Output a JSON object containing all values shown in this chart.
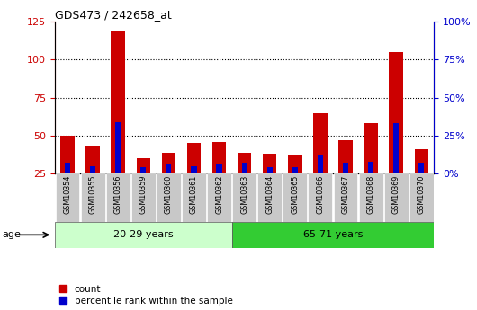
{
  "title": "GDS473 / 242658_at",
  "categories": [
    "GSM10354",
    "GSM10355",
    "GSM10356",
    "GSM10359",
    "GSM10360",
    "GSM10361",
    "GSM10362",
    "GSM10363",
    "GSM10364",
    "GSM10365",
    "GSM10366",
    "GSM10367",
    "GSM10368",
    "GSM10369",
    "GSM10370"
  ],
  "count_values": [
    50,
    43,
    119,
    35,
    39,
    45,
    46,
    39,
    38,
    37,
    65,
    47,
    58,
    105,
    41
  ],
  "percentile_values": [
    7,
    5,
    34,
    4,
    6,
    5,
    6,
    7,
    4,
    4,
    12,
    7,
    8,
    33,
    7
  ],
  "group1_label": "20-29 years",
  "group2_label": "65-71 years",
  "group1_count": 7,
  "group2_count": 8,
  "left_ylim": [
    25,
    125
  ],
  "left_yticks": [
    25,
    50,
    75,
    100,
    125
  ],
  "right_ylim": [
    0,
    100
  ],
  "right_yticks": [
    0,
    25,
    50,
    75,
    100
  ],
  "right_yticklabels": [
    "0%",
    "25%",
    "50%",
    "75%",
    "100%"
  ],
  "count_color": "#cc0000",
  "percentile_color": "#0000cc",
  "group1_bg": "#ccffcc",
  "group2_bg": "#33cc33",
  "tick_bg": "#c8c8c8",
  "legend_count": "count",
  "legend_pct": "percentile rank within the sample",
  "age_label": "age"
}
